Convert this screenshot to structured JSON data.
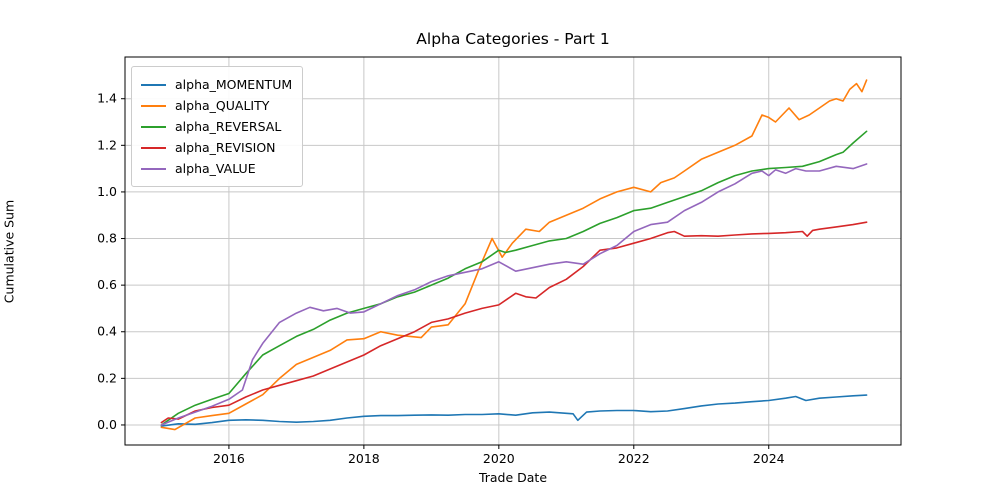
{
  "figure": {
    "title": "Alpha Categories - Part 1",
    "xlabel": "Trade Date",
    "ylabel": "Cumulative Sum"
  },
  "chart_data": {
    "type": "line",
    "title": "Alpha Categories - Part 1",
    "xlabel": "Trade Date",
    "ylabel": "Cumulative Sum",
    "xlim": [
      2014.46,
      2025.96
    ],
    "ylim": [
      -0.086,
      1.579
    ],
    "grid": true,
    "legend_position": "upper left",
    "background": "#ffffff",
    "grid_color": "#c8c8c8",
    "spine_color": "#000000",
    "x_ticks": {
      "values": [
        2016,
        2018,
        2020,
        2022,
        2024
      ],
      "labels": [
        "2016",
        "2018",
        "2020",
        "2022",
        "2024"
      ]
    },
    "y_ticks": {
      "values": [
        0.0,
        0.2,
        0.4,
        0.6,
        0.8,
        1.0,
        1.2,
        1.4
      ],
      "labels": [
        "0.0",
        "0.2",
        "0.4",
        "0.6",
        "0.8",
        "1.0",
        "1.2",
        "1.4"
      ]
    },
    "series": [
      {
        "name": "alpha_MOMENTUM",
        "color": "#1f77b4",
        "x": [
          2015.0,
          2015.25,
          2015.5,
          2015.75,
          2016.0,
          2016.25,
          2016.5,
          2016.75,
          2017.0,
          2017.25,
          2017.5,
          2017.75,
          2018.0,
          2018.25,
          2018.5,
          2018.75,
          2019.0,
          2019.25,
          2019.5,
          2019.75,
          2020.0,
          2020.25,
          2020.5,
          2020.75,
          2021.0,
          2021.1,
          2021.17,
          2021.3,
          2021.5,
          2021.75,
          2022.0,
          2022.25,
          2022.5,
          2022.75,
          2023.0,
          2023.25,
          2023.5,
          2023.75,
          2024.0,
          2024.25,
          2024.4,
          2024.55,
          2024.75,
          2025.0,
          2025.25,
          2025.45
        ],
        "y": [
          -0.005,
          0.005,
          0.003,
          0.01,
          0.02,
          0.022,
          0.02,
          0.015,
          0.012,
          0.015,
          0.02,
          0.03,
          0.037,
          0.04,
          0.04,
          0.042,
          0.043,
          0.042,
          0.045,
          0.045,
          0.048,
          0.042,
          0.052,
          0.055,
          0.05,
          0.048,
          0.02,
          0.055,
          0.06,
          0.062,
          0.062,
          0.057,
          0.06,
          0.07,
          0.082,
          0.09,
          0.094,
          0.1,
          0.105,
          0.115,
          0.122,
          0.105,
          0.115,
          0.12,
          0.125,
          0.128
        ]
      },
      {
        "name": "alpha_QUALITY",
        "color": "#ff7f0e",
        "x": [
          2015.0,
          2015.2,
          2015.5,
          2015.75,
          2016.0,
          2016.25,
          2016.5,
          2016.75,
          2017.0,
          2017.25,
          2017.5,
          2017.75,
          2018.0,
          2018.25,
          2018.5,
          2018.85,
          2019.0,
          2019.25,
          2019.5,
          2019.75,
          2019.9,
          2020.05,
          2020.2,
          2020.4,
          2020.6,
          2020.75,
          2021.0,
          2021.25,
          2021.5,
          2021.75,
          2022.0,
          2022.25,
          2022.4,
          2022.6,
          2022.75,
          2023.0,
          2023.25,
          2023.5,
          2023.75,
          2023.9,
          2024.0,
          2024.1,
          2024.3,
          2024.45,
          2024.6,
          2024.75,
          2024.9,
          2025.0,
          2025.1,
          2025.2,
          2025.3,
          2025.38,
          2025.45
        ],
        "y": [
          -0.01,
          -0.02,
          0.03,
          0.04,
          0.05,
          0.09,
          0.13,
          0.2,
          0.26,
          0.29,
          0.32,
          0.365,
          0.37,
          0.4,
          0.385,
          0.375,
          0.42,
          0.43,
          0.52,
          0.7,
          0.8,
          0.72,
          0.78,
          0.84,
          0.83,
          0.87,
          0.9,
          0.93,
          0.97,
          1.0,
          1.02,
          1.0,
          1.04,
          1.06,
          1.09,
          1.14,
          1.17,
          1.2,
          1.24,
          1.33,
          1.32,
          1.3,
          1.36,
          1.31,
          1.33,
          1.36,
          1.39,
          1.4,
          1.39,
          1.44,
          1.465,
          1.43,
          1.48
        ]
      },
      {
        "name": "alpha_REVERSAL",
        "color": "#2ca02c",
        "x": [
          2015.0,
          2015.25,
          2015.5,
          2015.75,
          2016.0,
          2016.25,
          2016.5,
          2016.75,
          2017.0,
          2017.25,
          2017.5,
          2017.75,
          2018.0,
          2018.25,
          2018.5,
          2018.75,
          2019.0,
          2019.25,
          2019.5,
          2019.75,
          2020.0,
          2020.1,
          2020.25,
          2020.5,
          2020.75,
          2021.0,
          2021.25,
          2021.5,
          2021.75,
          2022.0,
          2022.25,
          2022.5,
          2022.75,
          2023.0,
          2023.25,
          2023.5,
          2023.75,
          2024.0,
          2024.25,
          2024.5,
          2024.75,
          2025.0,
          2025.1,
          2025.25,
          2025.45
        ],
        "y": [
          0.0,
          0.05,
          0.085,
          0.11,
          0.135,
          0.22,
          0.3,
          0.34,
          0.38,
          0.41,
          0.45,
          0.48,
          0.5,
          0.52,
          0.55,
          0.57,
          0.6,
          0.63,
          0.67,
          0.7,
          0.75,
          0.74,
          0.75,
          0.77,
          0.79,
          0.8,
          0.83,
          0.865,
          0.89,
          0.92,
          0.93,
          0.955,
          0.98,
          1.005,
          1.04,
          1.07,
          1.09,
          1.1,
          1.105,
          1.11,
          1.13,
          1.16,
          1.17,
          1.21,
          1.26
        ]
      },
      {
        "name": "alpha_REVISION",
        "color": "#d62728",
        "x": [
          2015.0,
          2015.1,
          2015.25,
          2015.5,
          2015.75,
          2016.0,
          2016.25,
          2016.5,
          2016.75,
          2017.0,
          2017.25,
          2017.5,
          2017.75,
          2018.0,
          2018.25,
          2018.5,
          2018.75,
          2019.0,
          2019.25,
          2019.5,
          2019.75,
          2020.0,
          2020.25,
          2020.4,
          2020.55,
          2020.75,
          2021.0,
          2021.25,
          2021.5,
          2021.75,
          2022.0,
          2022.25,
          2022.5,
          2022.6,
          2022.75,
          2023.0,
          2023.25,
          2023.5,
          2023.75,
          2024.0,
          2024.25,
          2024.5,
          2024.57,
          2024.65,
          2024.75,
          2025.0,
          2025.25,
          2025.45
        ],
        "y": [
          0.01,
          0.03,
          0.025,
          0.06,
          0.075,
          0.085,
          0.12,
          0.15,
          0.17,
          0.19,
          0.21,
          0.24,
          0.27,
          0.3,
          0.34,
          0.37,
          0.4,
          0.44,
          0.455,
          0.48,
          0.5,
          0.515,
          0.565,
          0.55,
          0.545,
          0.59,
          0.625,
          0.68,
          0.75,
          0.76,
          0.78,
          0.8,
          0.825,
          0.83,
          0.81,
          0.812,
          0.81,
          0.815,
          0.82,
          0.822,
          0.825,
          0.83,
          0.81,
          0.835,
          0.84,
          0.85,
          0.86,
          0.87
        ]
      },
      {
        "name": "alpha_VALUE",
        "color": "#9467bd",
        "x": [
          2015.0,
          2015.25,
          2015.5,
          2015.75,
          2016.0,
          2016.2,
          2016.35,
          2016.5,
          2016.75,
          2017.0,
          2017.2,
          2017.4,
          2017.6,
          2017.8,
          2018.0,
          2018.25,
          2018.5,
          2018.75,
          2019.0,
          2019.25,
          2019.5,
          2019.75,
          2020.0,
          2020.25,
          2020.5,
          2020.75,
          2021.0,
          2021.25,
          2021.5,
          2021.75,
          2022.0,
          2022.25,
          2022.5,
          2022.75,
          2023.0,
          2023.25,
          2023.5,
          2023.75,
          2023.9,
          2024.0,
          2024.1,
          2024.25,
          2024.4,
          2024.55,
          2024.75,
          2025.0,
          2025.25,
          2025.45
        ],
        "y": [
          0.0,
          0.03,
          0.055,
          0.08,
          0.11,
          0.15,
          0.28,
          0.35,
          0.44,
          0.48,
          0.505,
          0.49,
          0.5,
          0.48,
          0.485,
          0.52,
          0.555,
          0.58,
          0.615,
          0.64,
          0.655,
          0.67,
          0.7,
          0.66,
          0.675,
          0.69,
          0.7,
          0.69,
          0.735,
          0.77,
          0.83,
          0.86,
          0.87,
          0.92,
          0.955,
          1.0,
          1.035,
          1.08,
          1.09,
          1.07,
          1.095,
          1.08,
          1.1,
          1.09,
          1.09,
          1.11,
          1.1,
          1.12
        ]
      }
    ]
  }
}
